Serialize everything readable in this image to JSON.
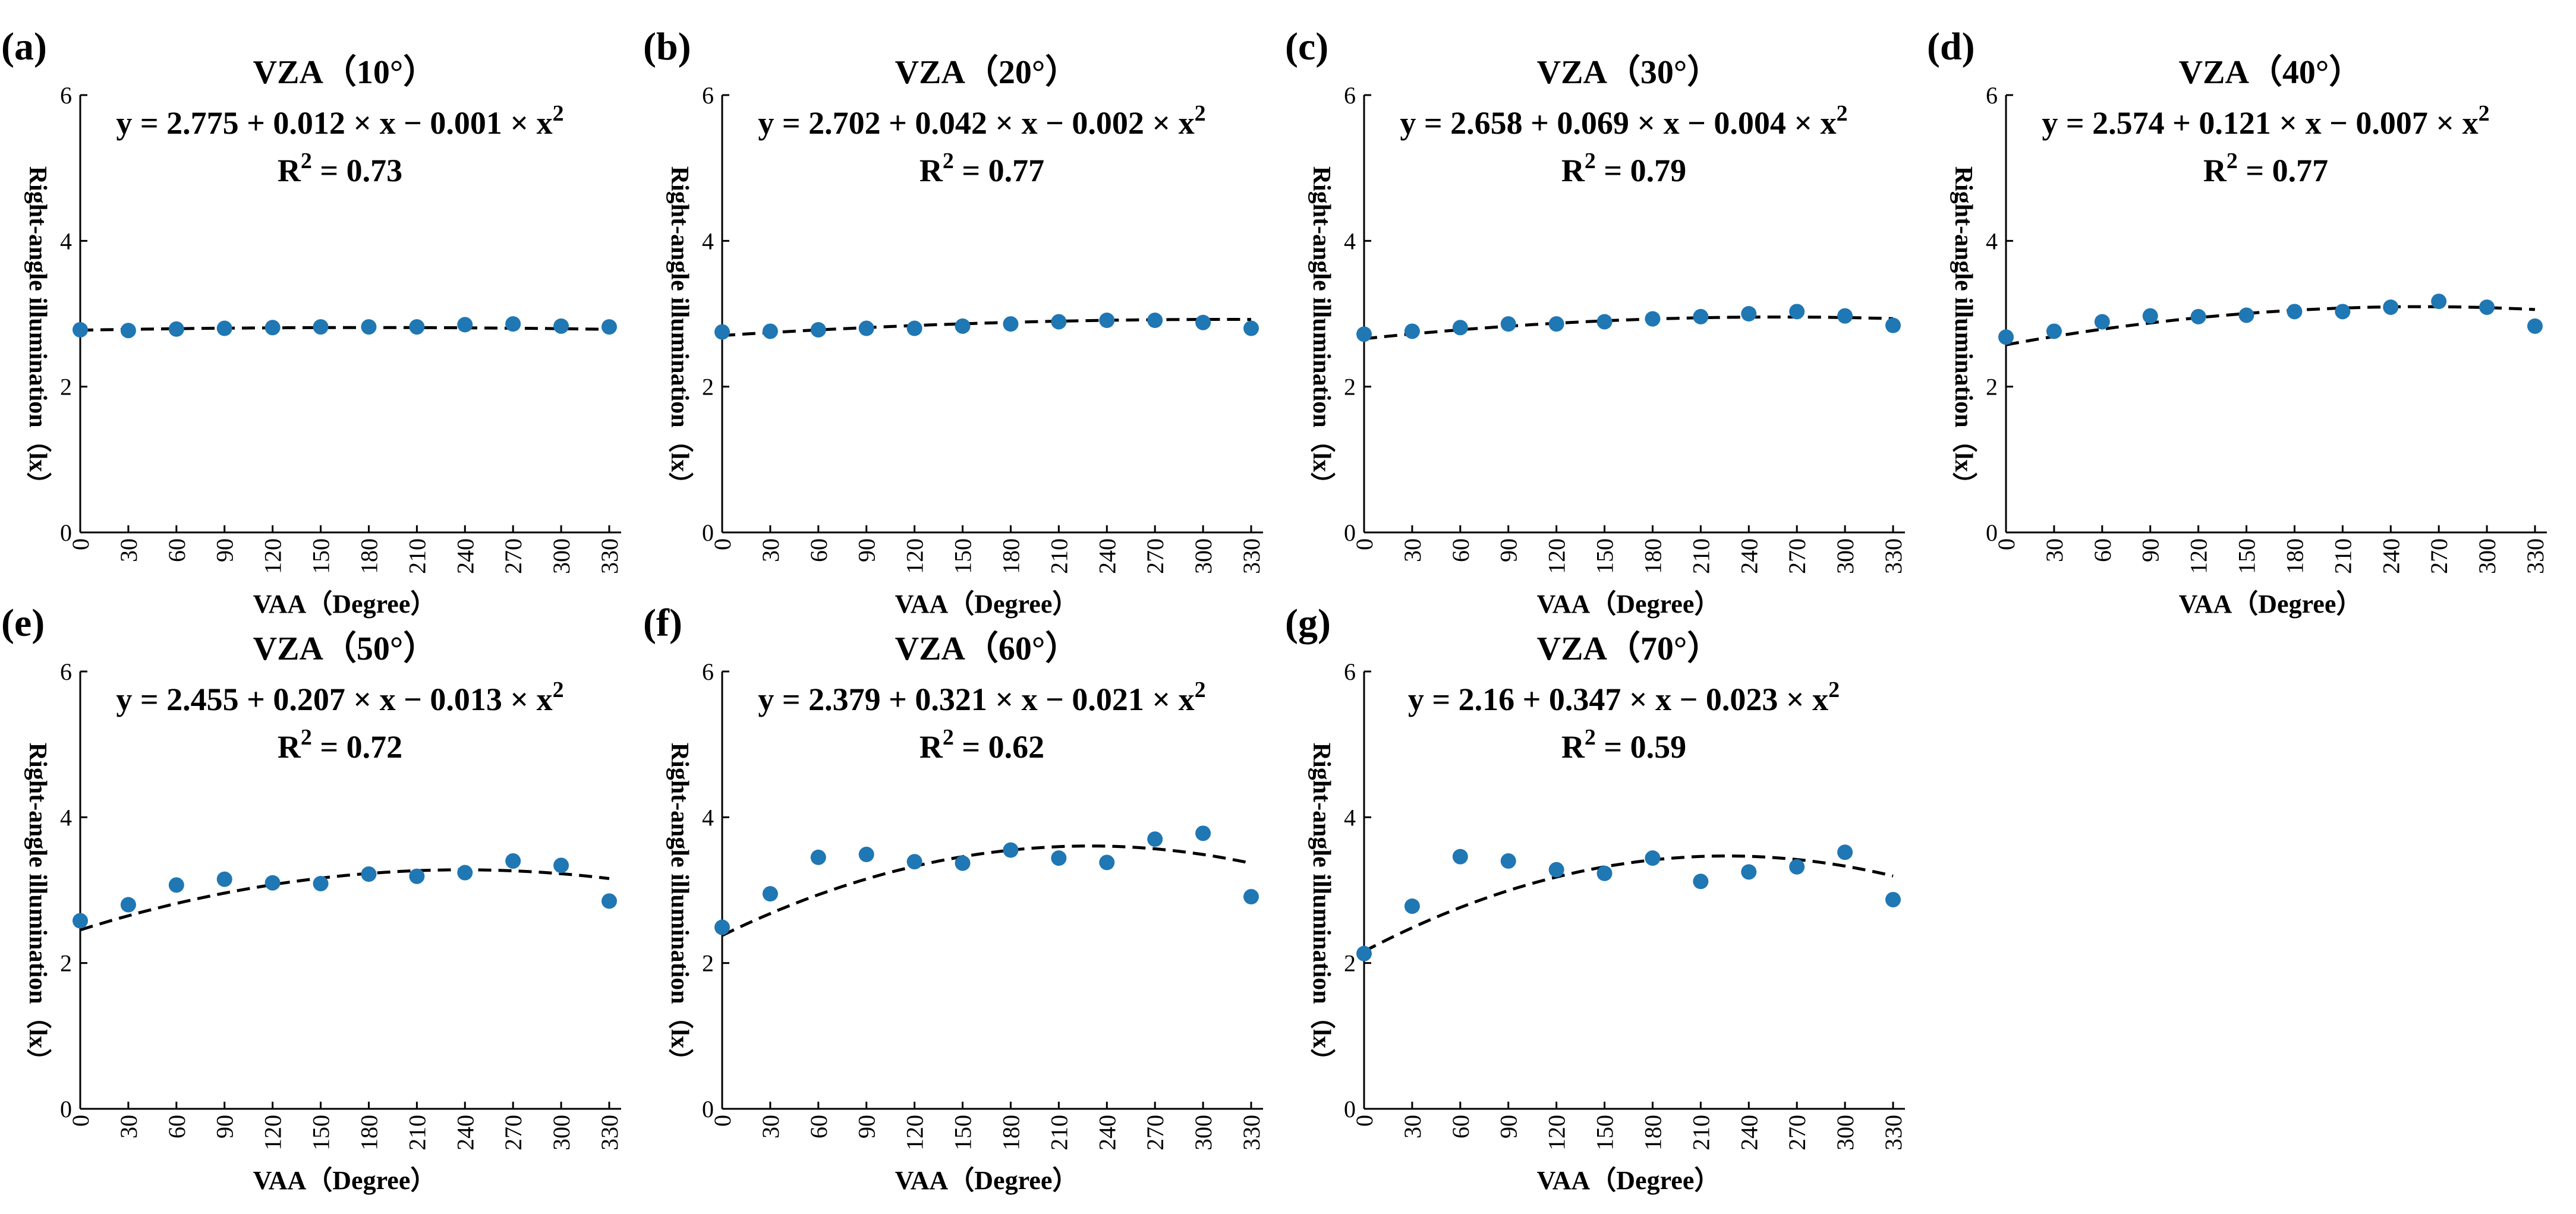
{
  "chart_data": [
    {
      "type": "scatter",
      "panel_label": "(a)",
      "title": "VZA（10°）",
      "equation": "y = 2.775 + 0.012 × x − 0.001 × x",
      "r2": "R",
      "r2_value": " = 0.73",
      "ylabel": "Right-angle illumination（lx）",
      "xlabel": "VAA（Degree）",
      "x": [
        0,
        30,
        60,
        90,
        120,
        150,
        180,
        210,
        240,
        270,
        300,
        330
      ],
      "y": [
        2.78,
        2.77,
        2.79,
        2.8,
        2.81,
        2.82,
        2.82,
        2.82,
        2.85,
        2.86,
        2.83,
        2.82
      ],
      "fit": {
        "a": 2.775,
        "b": 0.012,
        "c": -0.001
      },
      "xlim": [
        0,
        330
      ],
      "ylim": [
        0,
        6
      ],
      "xticks": [
        "0",
        "30",
        "60",
        "90",
        "120",
        "150",
        "180",
        "210",
        "240",
        "270",
        "300",
        "330"
      ],
      "yticks": [
        "0",
        "2",
        "4",
        "6"
      ]
    },
    {
      "type": "scatter",
      "panel_label": "(b)",
      "title": "VZA（20°）",
      "equation": "y = 2.702 + 0.042 × x − 0.002 × x",
      "r2": "R",
      "r2_value": " = 0.77",
      "ylabel": "Right-angle illumination（lx）",
      "xlabel": "VAA（Degree）",
      "x": [
        0,
        30,
        60,
        90,
        120,
        150,
        180,
        210,
        240,
        270,
        300,
        330
      ],
      "y": [
        2.75,
        2.76,
        2.78,
        2.8,
        2.8,
        2.83,
        2.86,
        2.89,
        2.91,
        2.91,
        2.88,
        2.8
      ],
      "fit": {
        "a": 2.702,
        "b": 0.042,
        "c": -0.002
      },
      "xlim": [
        0,
        330
      ],
      "ylim": [
        0,
        6
      ],
      "xticks": [
        "0",
        "30",
        "60",
        "90",
        "120",
        "150",
        "180",
        "210",
        "240",
        "270",
        "300",
        "330"
      ],
      "yticks": [
        "0",
        "2",
        "4",
        "6"
      ]
    },
    {
      "type": "scatter",
      "panel_label": "(c)",
      "title": "VZA（30°）",
      "equation": "y = 2.658 + 0.069 × x − 0.004 × x",
      "r2": "R",
      "r2_value": " = 0.79",
      "ylabel": "Right-angle illumination（lx）",
      "xlabel": "VAA（Degree）",
      "x": [
        0,
        30,
        60,
        90,
        120,
        150,
        180,
        210,
        240,
        270,
        300,
        330
      ],
      "y": [
        2.72,
        2.76,
        2.81,
        2.86,
        2.86,
        2.89,
        2.93,
        2.96,
        3.0,
        3.03,
        2.97,
        2.84
      ],
      "fit": {
        "a": 2.658,
        "b": 0.069,
        "c": -0.004
      },
      "xlim": [
        0,
        330
      ],
      "ylim": [
        0,
        6
      ],
      "xticks": [
        "0",
        "30",
        "60",
        "90",
        "120",
        "150",
        "180",
        "210",
        "240",
        "270",
        "300",
        "330"
      ],
      "yticks": [
        "0",
        "2",
        "4",
        "6"
      ]
    },
    {
      "type": "scatter",
      "panel_label": "(d)",
      "title": "VZA（40°）",
      "equation": "y = 2.574 + 0.121 × x − 0.007 × x",
      "r2": "R",
      "r2_value": " = 0.77",
      "ylabel": "Right-angle illumination（lx）",
      "xlabel": "VAA（Degree）",
      "x": [
        0,
        30,
        60,
        90,
        120,
        150,
        180,
        210,
        240,
        270,
        300,
        330
      ],
      "y": [
        2.68,
        2.76,
        2.89,
        2.97,
        2.96,
        2.98,
        3.03,
        3.03,
        3.09,
        3.17,
        3.09,
        2.83
      ],
      "fit": {
        "a": 2.574,
        "b": 0.121,
        "c": -0.007
      },
      "xlim": [
        0,
        330
      ],
      "ylim": [
        0,
        6
      ],
      "xticks": [
        "0",
        "30",
        "60",
        "90",
        "120",
        "150",
        "180",
        "210",
        "240",
        "270",
        "300",
        "330"
      ],
      "yticks": [
        "0",
        "2",
        "4",
        "6"
      ]
    },
    {
      "type": "scatter",
      "panel_label": "(e)",
      "title": "VZA（50°）",
      "equation": "y = 2.455 + 0.207 × x − 0.013 × x",
      "r2": "R",
      "r2_value": " = 0.72",
      "ylabel": "Right-angle illumination（lx）",
      "xlabel": "VAA（Degree）",
      "x": [
        0,
        30,
        60,
        90,
        120,
        150,
        180,
        210,
        240,
        270,
        300,
        330
      ],
      "y": [
        2.58,
        2.8,
        3.07,
        3.15,
        3.1,
        3.09,
        3.22,
        3.19,
        3.24,
        3.4,
        3.34,
        2.85
      ],
      "fit": {
        "a": 2.455,
        "b": 0.207,
        "c": -0.013
      },
      "xlim": [
        0,
        330
      ],
      "ylim": [
        0,
        6
      ],
      "xticks": [
        "0",
        "30",
        "60",
        "90",
        "120",
        "150",
        "180",
        "210",
        "240",
        "270",
        "300",
        "330"
      ],
      "yticks": [
        "0",
        "2",
        "4",
        "6"
      ]
    },
    {
      "type": "scatter",
      "panel_label": "(f)",
      "title": "VZA（60°）",
      "equation": "y = 2.379 + 0.321 × x − 0.021 × x",
      "r2": "R",
      "r2_value": " = 0.62",
      "ylabel": "Right-angle illumination（lx）",
      "xlabel": "VAA（Degree）",
      "x": [
        0,
        30,
        60,
        90,
        120,
        150,
        180,
        210,
        240,
        270,
        300,
        330
      ],
      "y": [
        2.49,
        2.95,
        3.45,
        3.49,
        3.39,
        3.37,
        3.55,
        3.44,
        3.38,
        3.7,
        3.78,
        2.91
      ],
      "fit": {
        "a": 2.379,
        "b": 0.321,
        "c": -0.021
      },
      "xlim": [
        0,
        330
      ],
      "ylim": [
        0,
        6
      ],
      "xticks": [
        "0",
        "30",
        "60",
        "90",
        "120",
        "150",
        "180",
        "210",
        "240",
        "270",
        "300",
        "330"
      ],
      "yticks": [
        "0",
        "2",
        "4",
        "6"
      ]
    },
    {
      "type": "scatter",
      "panel_label": "(g)",
      "title": "VZA（70°）",
      "equation": "y = 2.16 + 0.347 × x − 0.023 × x",
      "r2": "R",
      "r2_value": " = 0.59",
      "ylabel": "Right-angle illumination（lx）",
      "xlabel": "VAA（Degree）",
      "x": [
        0,
        30,
        60,
        90,
        120,
        150,
        180,
        210,
        240,
        270,
        300,
        330
      ],
      "y": [
        2.13,
        2.78,
        3.46,
        3.4,
        3.28,
        3.23,
        3.44,
        3.12,
        3.25,
        3.32,
        3.52,
        2.87
      ],
      "fit": {
        "a": 2.16,
        "b": 0.347,
        "c": -0.023
      },
      "xlim": [
        0,
        330
      ],
      "ylim": [
        0,
        6
      ],
      "xticks": [
        "0",
        "30",
        "60",
        "90",
        "120",
        "150",
        "180",
        "210",
        "240",
        "270",
        "300",
        "330"
      ],
      "yticks": [
        "0",
        "2",
        "4",
        "6"
      ]
    }
  ],
  "style": {
    "point_color": "#1f77b4",
    "fit_color": "#000000",
    "axis_color": "#000000"
  }
}
